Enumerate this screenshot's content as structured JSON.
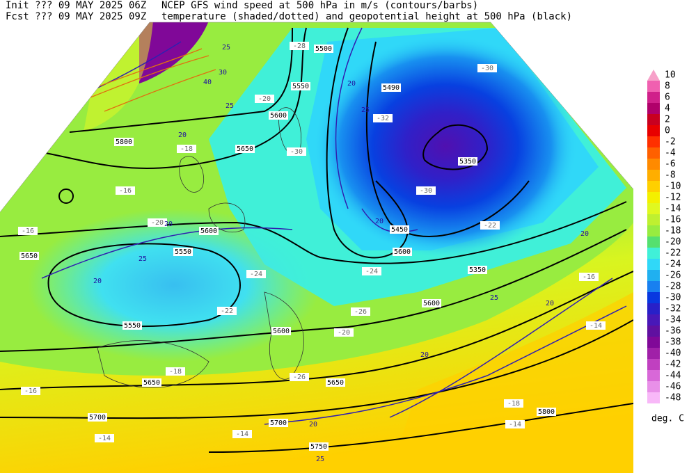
{
  "header": {
    "init": "Init  ??? 09 MAY 2025 06Z",
    "fcst": "Fcst ??? 09 MAY 2025 09Z",
    "title1": "NCEP GFS wind speed at 500 hPa in m/s (contours/barbs)",
    "title2": "temperature (shaded/dotted) and geopotential height at 500 hPa (black)"
  },
  "colorbar": {
    "values": [
      10,
      8,
      6,
      4,
      2,
      0,
      -2,
      -4,
      -6,
      -8,
      -10,
      -12,
      -14,
      -16,
      -18,
      -20,
      -22,
      -24,
      -26,
      -28,
      -30,
      -32,
      -34,
      -36,
      -38,
      -40,
      -42,
      -44,
      -46,
      -48
    ],
    "colors": [
      "#f7a1c9",
      "#f060b0",
      "#d0208a",
      "#b0006a",
      "#c80020",
      "#e80000",
      "#ff3000",
      "#ff6000",
      "#ff8a00",
      "#ffae00",
      "#ffd000",
      "#f4f000",
      "#e0f820",
      "#bff030",
      "#98ec40",
      "#55e070",
      "#40f0d8",
      "#30d8f8",
      "#20b0f0",
      "#1880f0",
      "#0838e0",
      "#2820c8",
      "#4818b8",
      "#6010a0",
      "#800898",
      "#a020a8",
      "#c040c0",
      "#d868d8",
      "#e890e8",
      "#f8b8f8"
    ],
    "unit": "deg. C"
  },
  "height_labels": [
    "5500",
    "5550",
    "5600",
    "5650",
    "5800",
    "5490",
    "5350",
    "5450",
    "5600",
    "5600",
    "5550",
    "5650",
    "5550",
    "5600",
    "5600",
    "5350",
    "5650",
    "5650",
    "5700",
    "5700",
    "5750",
    "5800"
  ],
  "temp_labels": [
    "-28",
    "-20",
    "-18",
    "-16",
    "-16",
    "-20",
    "-24",
    "-22",
    "-30",
    "-30",
    "-32",
    "-30",
    "-22",
    "-24",
    "-26",
    "-20",
    "-18",
    "-16",
    "-26",
    "-16",
    "-14",
    "-18",
    "-14",
    "-14",
    "-14"
  ],
  "wind_labels": [
    "25",
    "30",
    "40",
    "20",
    "25",
    "20",
    "20",
    "25",
    "20",
    "20",
    "25",
    "20",
    "25",
    "20",
    "20",
    "25",
    "20"
  ]
}
